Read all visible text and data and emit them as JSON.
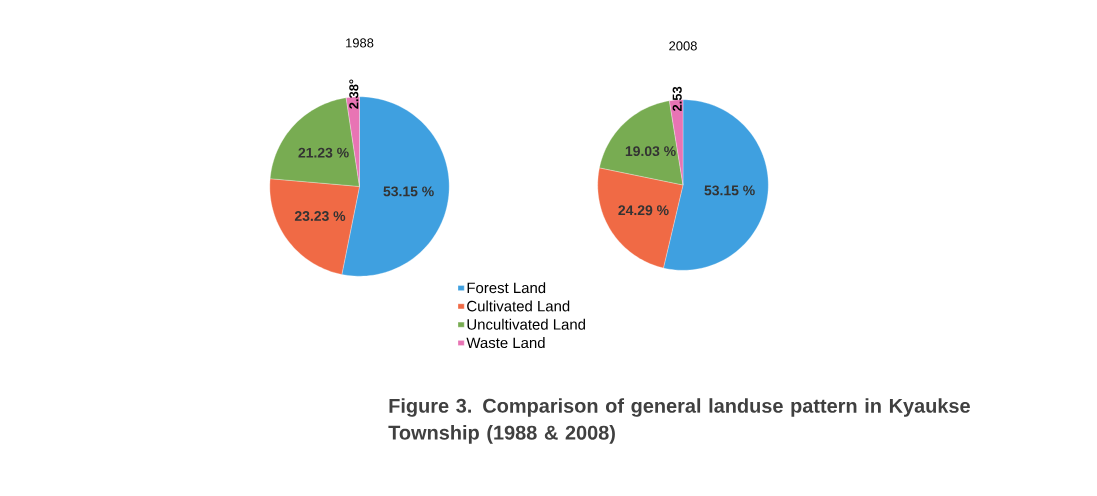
{
  "chart_data": [
    {
      "type": "pie",
      "title": "1988",
      "categories": [
        "Forest Land",
        "Cultivated Land",
        "Uncultivated Land",
        "Waste Land"
      ],
      "values": [
        53.15,
        23.23,
        21.23,
        2.38
      ],
      "colors": [
        "#3fa0e0",
        "#f06a45",
        "#78ac52",
        "#e874b4"
      ],
      "value_labels": [
        "53.15 %",
        "23.23 %",
        "21.23 %",
        "2.38°"
      ],
      "legend": "bottom right",
      "annotations": [
        "Figure 3. Comparison of general landuse pattern in Kyaukse Township (1988 & 2008)"
      ]
    },
    {
      "type": "pie",
      "title": "2008",
      "values": [
        53.15,
        24.29,
        19.03,
        2.53
      ],
      "colors": [
        "#3fa0e0",
        "#f06a45",
        "#78ac52",
        "#e874b4"
      ],
      "value_labels": [
        "53.15 %",
        "24.29 %",
        "19.03 %",
        "2.53"
      ]
    }
  ]
}
